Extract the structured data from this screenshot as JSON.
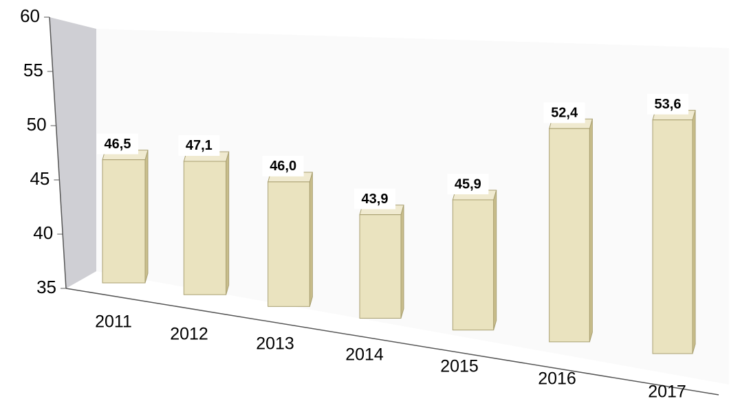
{
  "chart_data": {
    "type": "bar",
    "categories": [
      "2011",
      "2012",
      "2013",
      "2014",
      "2015",
      "2016",
      "2017"
    ],
    "values": [
      46.5,
      47.1,
      46.0,
      43.9,
      45.9,
      52.4,
      53.6
    ],
    "value_labels": [
      "46,5",
      "47,1",
      "46,0",
      "43,9",
      "45,9",
      "52,4",
      "53,6"
    ],
    "color": "#e6deb4",
    "ylim": [
      35,
      60
    ],
    "yticks": [
      35,
      40,
      45,
      50,
      55,
      60
    ]
  }
}
